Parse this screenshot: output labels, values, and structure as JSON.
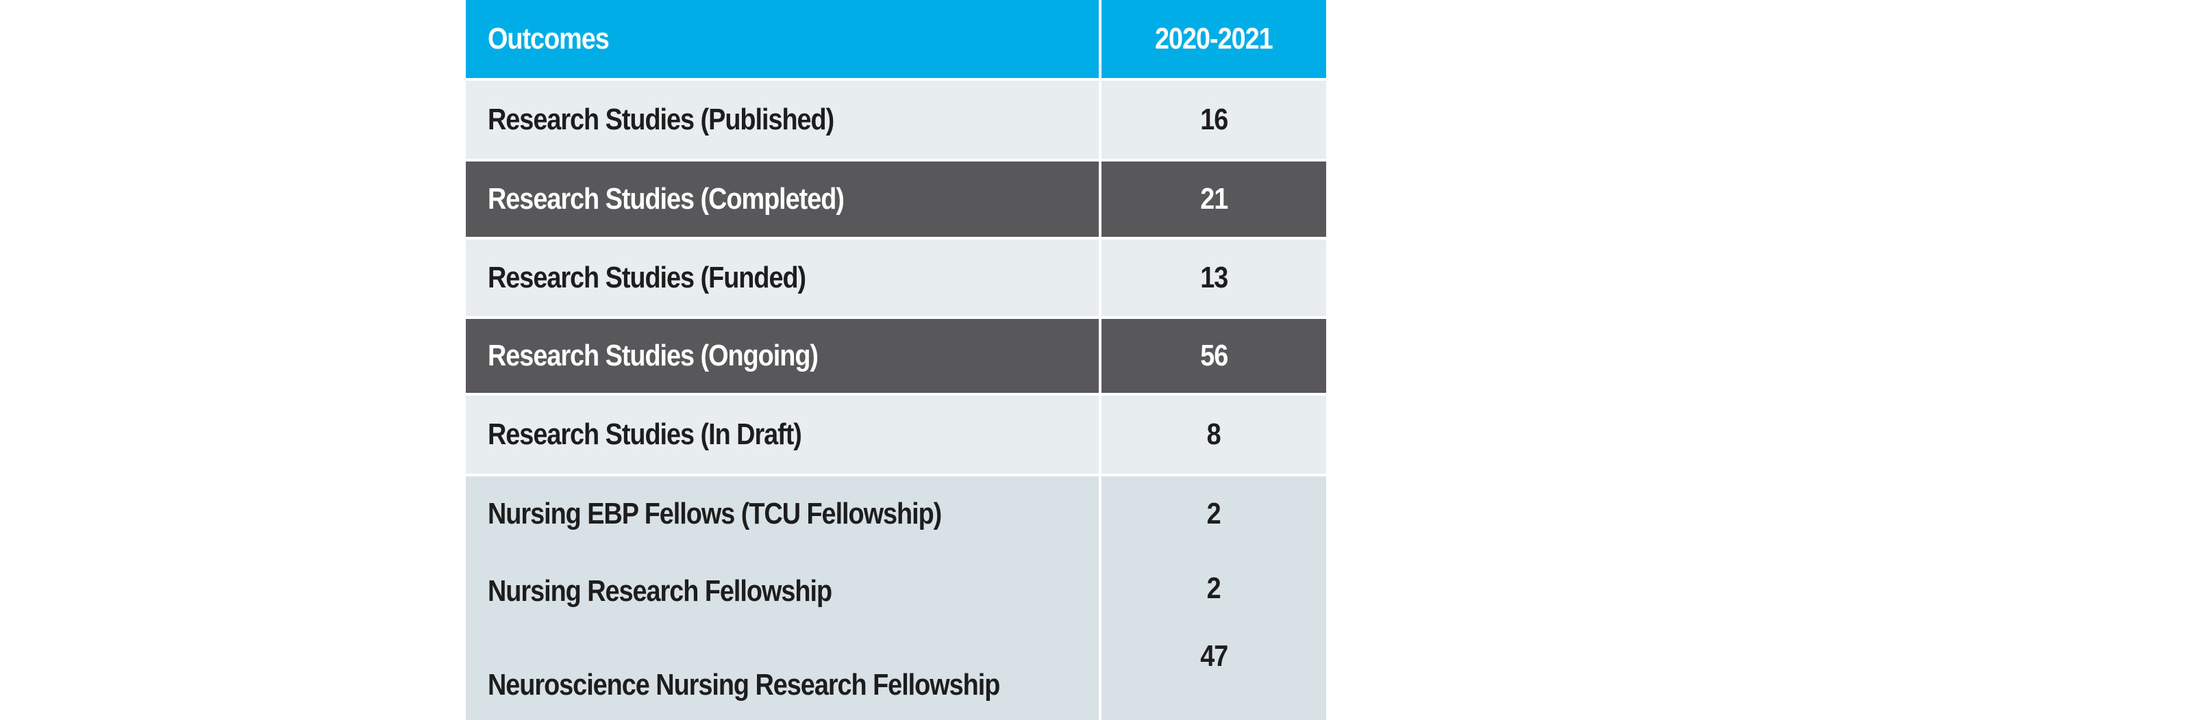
{
  "table": {
    "header": {
      "label": "Outcomes",
      "value": "2020-2021"
    },
    "rows": [
      {
        "label": "Research Studies (Published)",
        "value": "16"
      },
      {
        "label": "Research Studies (Completed)",
        "value": "21"
      },
      {
        "label": "Research Studies (Funded)",
        "value": "13"
      },
      {
        "label": "Research Studies (Ongoing)",
        "value": "56"
      },
      {
        "label": "Research Studies (In Draft)",
        "value": "8"
      },
      {
        "label": "Nursing EBP Fellows (TCU Fellowship)",
        "value": "2"
      },
      {
        "label": "Nursing Research Fellowship",
        "value": "2"
      },
      {
        "label": "Neuroscience Nursing Research Fellowship",
        "value": "47"
      }
    ]
  },
  "colors": {
    "header_bg": "#00ade6",
    "light_row_bg": "#e8eef0",
    "dark_row_bg": "#58585a",
    "fellowship_row_bg": "#d8e1e5"
  }
}
